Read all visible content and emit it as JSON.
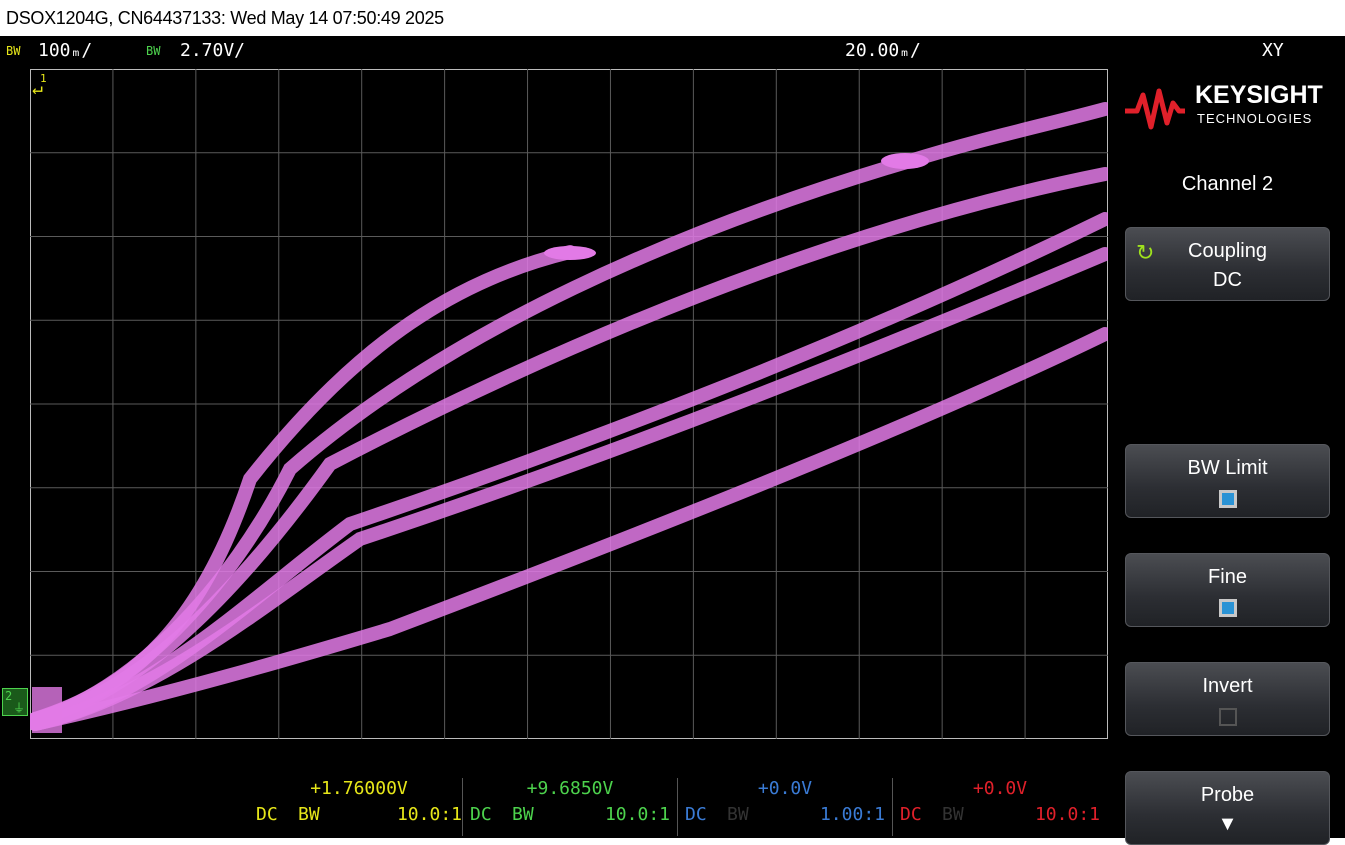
{
  "window": {
    "title": "DSOX1204G, CN64437133: Wed May 14 07:50:49 2025"
  },
  "status": {
    "ch1_bw": "BW",
    "ch1_scale": "100ₘ/",
    "ch2_bw": "BW",
    "ch2_scale": "2.70V/",
    "timebase": "20.00ₘ/",
    "mode": "XY"
  },
  "markers": {
    "ch1": "1",
    "ch2": "2"
  },
  "panel": {
    "brand": "KEYSIGHT",
    "brand_sub": "TECHNOLOGIES",
    "title": "Channel 2",
    "coupling_label": "Coupling",
    "coupling_value": "DC",
    "bw_limit_label": "BW Limit",
    "bw_limit_checked": true,
    "fine_label": "Fine",
    "fine_checked": true,
    "invert_label": "Invert",
    "invert_checked": false,
    "probe_label": "Probe"
  },
  "channels": [
    {
      "offset": "+1.76000V",
      "coupling": "DC",
      "bw": "BW",
      "probe": "10.0:1",
      "color": "#e6e619"
    },
    {
      "offset": "+9.6850V",
      "coupling": "DC",
      "bw": "BW",
      "probe": "10.0:1",
      "color": "#4dd24d"
    },
    {
      "offset": "+0.0V",
      "coupling": "DC",
      "bw": "BW",
      "probe": "1.00:1",
      "color": "#3a7bd5"
    },
    {
      "offset": "+0.0V",
      "coupling": "DC",
      "bw": "BW",
      "probe": "10.0:1",
      "color": "#e0202a"
    }
  ],
  "colors": {
    "trace": "#e27ae6",
    "grid": "#5a5a5a",
    "ch1": "#e6e619",
    "ch2": "#4dd24d",
    "logo_wave": "#e0202a"
  }
}
